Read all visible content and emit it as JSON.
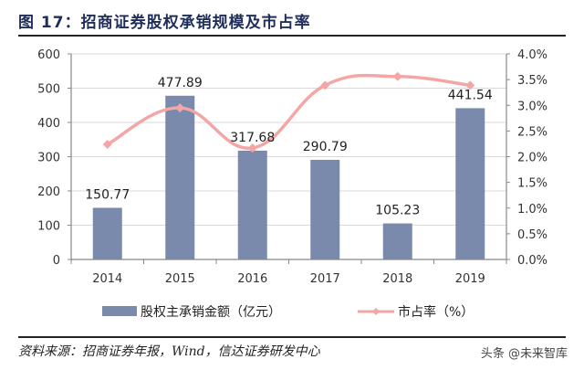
{
  "header": {
    "title": "图 17：招商证券股权承销规模及市占率"
  },
  "chart_data": {
    "type": "bar+line",
    "title": "招商证券股权承销规模及市占率",
    "categories": [
      "2014",
      "2015",
      "2016",
      "2017",
      "2018",
      "2019"
    ],
    "series": [
      {
        "name": "股权主承销金额（亿元）",
        "type": "bar",
        "axis": "left",
        "color": "#7a8aad",
        "values": [
          150.77,
          477.89,
          317.68,
          290.79,
          105.23,
          441.54
        ],
        "labels": [
          "150.77",
          "477.89",
          "317.68",
          "290.79",
          "105.23",
          "441.54"
        ]
      },
      {
        "name": "市占率（%）",
        "type": "line",
        "axis": "right",
        "color": "#f4a6a6",
        "values": [
          2.24,
          2.95,
          2.17,
          3.39,
          3.56,
          3.39
        ]
      }
    ],
    "left_axis": {
      "min": 0,
      "max": 600,
      "ticks": [
        "0",
        "100",
        "200",
        "300",
        "400",
        "500",
        "600"
      ]
    },
    "right_axis": {
      "min": 0,
      "max": 4.0,
      "ticks": [
        "0.0%",
        "0.5%",
        "1.0%",
        "1.5%",
        "2.0%",
        "2.5%",
        "3.0%",
        "3.5%",
        "4.0%"
      ]
    },
    "xlabel": "",
    "ylabel": "",
    "grid": true,
    "legend_position": "bottom"
  },
  "legend": {
    "bar_label": "股权主承销金额（亿元）",
    "line_label": "市占率（%）"
  },
  "footer": {
    "source": "资料来源：招商证券年报，Wind，信达证券研发中心",
    "watermark": "头条 @未来智库"
  }
}
